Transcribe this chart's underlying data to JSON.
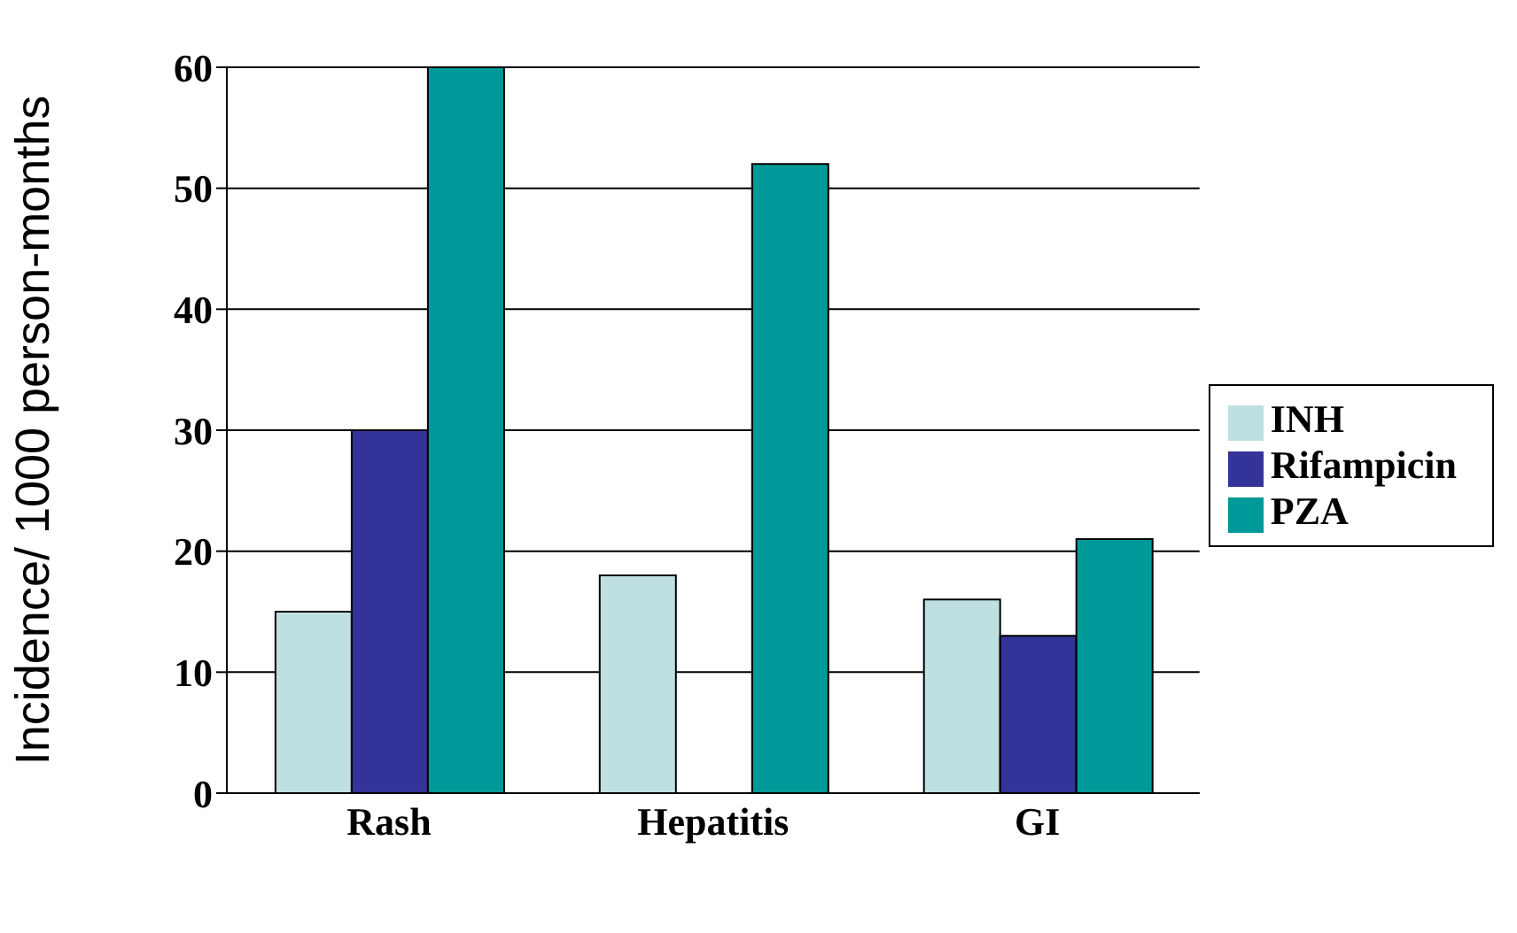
{
  "chart_data": {
    "type": "bar",
    "ylabel": "Incidence/ 1000 person-months",
    "categories": [
      "Rash",
      "Hepatitis",
      "GI"
    ],
    "series": [
      {
        "name": "INH",
        "color": "#bfe0e0",
        "values": [
          15,
          18,
          16
        ]
      },
      {
        "name": "Rifampicin",
        "color": "#333399",
        "values": [
          30,
          0,
          13
        ]
      },
      {
        "name": "PZA",
        "color": "#009999",
        "values": [
          60,
          52,
          21
        ]
      }
    ],
    "ylim": [
      0,
      60
    ],
    "yticks": [
      0,
      10,
      20,
      30,
      40,
      50,
      60
    ],
    "grid": "y",
    "legend": "right"
  }
}
